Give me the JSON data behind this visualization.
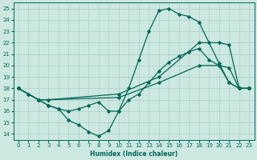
{
  "xlabel": "Humidex (Indice chaleur)",
  "background_color": "#cce8e0",
  "grid_color": "#aacfc8",
  "line_color": "#006858",
  "xlim": [
    -0.5,
    23.5
  ],
  "ylim": [
    13.5,
    25.5
  ],
  "xticks": [
    0,
    1,
    2,
    3,
    4,
    5,
    6,
    7,
    8,
    9,
    10,
    11,
    12,
    13,
    14,
    15,
    16,
    17,
    18,
    19,
    20,
    21,
    22,
    23
  ],
  "yticks": [
    14,
    15,
    16,
    17,
    18,
    19,
    20,
    21,
    22,
    23,
    24,
    25
  ],
  "line1_x": [
    0,
    1,
    2,
    3,
    4,
    5,
    6,
    7,
    8,
    9,
    10,
    11,
    12,
    13,
    14,
    15,
    16,
    17,
    18,
    19,
    20,
    21,
    22,
    23
  ],
  "line1_y": [
    18,
    17.5,
    17,
    16.5,
    16.2,
    15.2,
    14.8,
    14.2,
    13.8,
    14.3,
    16.0,
    18.0,
    20.5,
    23.0,
    24.8,
    25.0,
    24.5,
    24.3,
    23.8,
    22.0,
    20.2,
    18.5,
    18.0,
    18.0
  ],
  "line2_x": [
    0,
    1,
    2,
    3,
    4,
    5,
    6,
    7,
    8,
    9,
    10,
    11,
    12,
    13,
    14,
    15,
    16,
    17,
    18,
    19,
    20,
    21,
    22,
    23
  ],
  "line2_y": [
    18,
    17.5,
    17,
    16.5,
    16.2,
    16.0,
    16.2,
    16.5,
    16.8,
    16.0,
    16.0,
    17.0,
    17.5,
    18.5,
    19.5,
    20.3,
    20.8,
    21.2,
    21.5,
    20.5,
    20.0,
    18.5,
    18.0,
    18.0
  ],
  "line3_x": [
    0,
    2,
    3,
    10,
    14,
    18,
    20,
    21,
    22,
    23
  ],
  "line3_y": [
    18,
    17,
    17,
    17.5,
    19.0,
    22.0,
    22.0,
    21.8,
    18.0,
    18.0
  ],
  "line4_x": [
    0,
    2,
    3,
    10,
    14,
    18,
    20,
    21,
    22,
    23
  ],
  "line4_y": [
    18,
    17,
    17,
    17.2,
    18.5,
    20.0,
    20.0,
    19.8,
    18.0,
    18.0
  ]
}
